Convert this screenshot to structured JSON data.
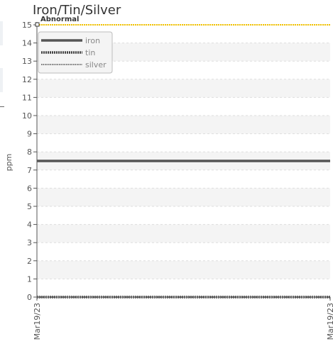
{
  "chart_data": {
    "type": "line",
    "title": "Iron/Tin/Silver",
    "ylabel": "ppm",
    "xlabel": "",
    "ylim": [
      0,
      15
    ],
    "yticks": [
      0,
      1,
      2,
      3,
      4,
      5,
      6,
      7,
      8,
      9,
      10,
      11,
      12,
      13,
      14,
      15
    ],
    "x": [
      "Mar19/23",
      "Mar19/23"
    ],
    "series": [
      {
        "name": "iron",
        "values": [
          7.5,
          7.5
        ],
        "color": "#555555",
        "style": "solid"
      },
      {
        "name": "tin",
        "values": [
          0,
          0
        ],
        "color": "#444444",
        "style": "dotted-thick"
      },
      {
        "name": "silver",
        "values": [
          0,
          0
        ],
        "color": "#777777",
        "style": "dotted"
      }
    ],
    "threshold": {
      "label": "Abnormal",
      "value": 15,
      "color": "#f2c200"
    },
    "legend": "top-left",
    "grid": "horizontal bands"
  },
  "colors": {
    "band": "#f4f4f4",
    "axis": "#555555",
    "threshold": "#f2c200"
  }
}
